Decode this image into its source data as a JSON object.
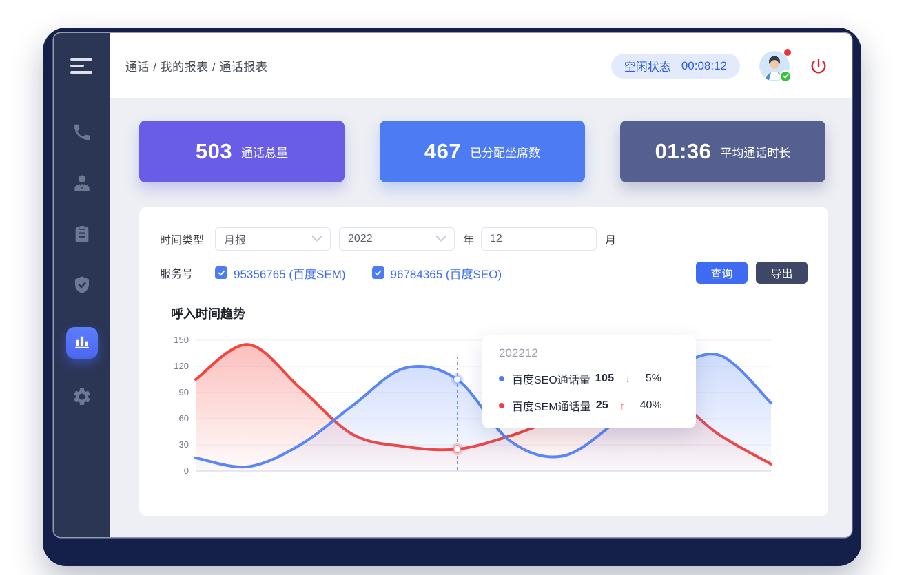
{
  "breadcrumb": "通话 / 我的报表 / 通话报表",
  "header": {
    "status_label": "空闲状态",
    "status_timer": "00:08:12"
  },
  "stats": [
    {
      "value": "503",
      "label": "通话总量",
      "color": "#695ce6"
    },
    {
      "value": "467",
      "label": "已分配坐席数",
      "color": "#4d7bf3"
    },
    {
      "value": "01:36",
      "label": "平均通话时长",
      "color": "#566090"
    }
  ],
  "filters": {
    "time_type_label": "时间类型",
    "time_type_value": "月报",
    "year_value": "2022",
    "year_unit": "年",
    "month_value": "12",
    "month_unit": "月",
    "service_label": "服务号",
    "services": [
      {
        "label": "95356765 (百度SEM)",
        "checked": true
      },
      {
        "label": "96784365 (百度SEO)",
        "checked": true
      }
    ],
    "query_label": "查询",
    "export_label": "导出"
  },
  "chart": {
    "title": "呼入时间趋势",
    "y_tick_labels": [
      "150",
      "120",
      "90",
      "60",
      "30",
      "0"
    ],
    "tooltip": {
      "title": "202212",
      "rows": [
        {
          "name": "百度SEO通话量",
          "value": "105",
          "trend_arrow": "↓",
          "percent": "5%",
          "color": "#4d7bf3"
        },
        {
          "name": "百度SEM通话量",
          "value": "25",
          "trend_arrow": "↑",
          "percent": "40%",
          "color": "#f0413b"
        }
      ]
    }
  },
  "chart_data": {
    "type": "line",
    "title": "呼入时间趋势",
    "y_max": 150,
    "y_ticks": [
      0,
      30,
      60,
      90,
      120,
      150
    ],
    "point_count": 12,
    "highlight_index": 5,
    "highlight_label": "202212",
    "grid": true,
    "smooth": true,
    "series": [
      {
        "name": "百度SEO通话量",
        "color": "#5b87f5",
        "values": [
          15,
          5,
          30,
          75,
          118,
          105,
          35,
          17,
          55,
          110,
          133,
          78
        ]
      },
      {
        "name": "百度SEM通话量",
        "color": "#f5443c",
        "values": [
          105,
          145,
          95,
          42,
          28,
          25,
          40,
          62,
          80,
          87,
          42,
          8
        ]
      }
    ]
  },
  "colors": {
    "frame": "#141f4a",
    "sidebar": "#2b3554",
    "content_bg": "#edeff4",
    "accent_blue": "#3f6bf2",
    "accent_dark": "#3e4866",
    "status_pill_bg": "#e3eafb",
    "status_text": "#2d5fe0",
    "power_red": "#d8232f",
    "line_seo": "#5b87f5",
    "line_sem": "#f5443c"
  }
}
